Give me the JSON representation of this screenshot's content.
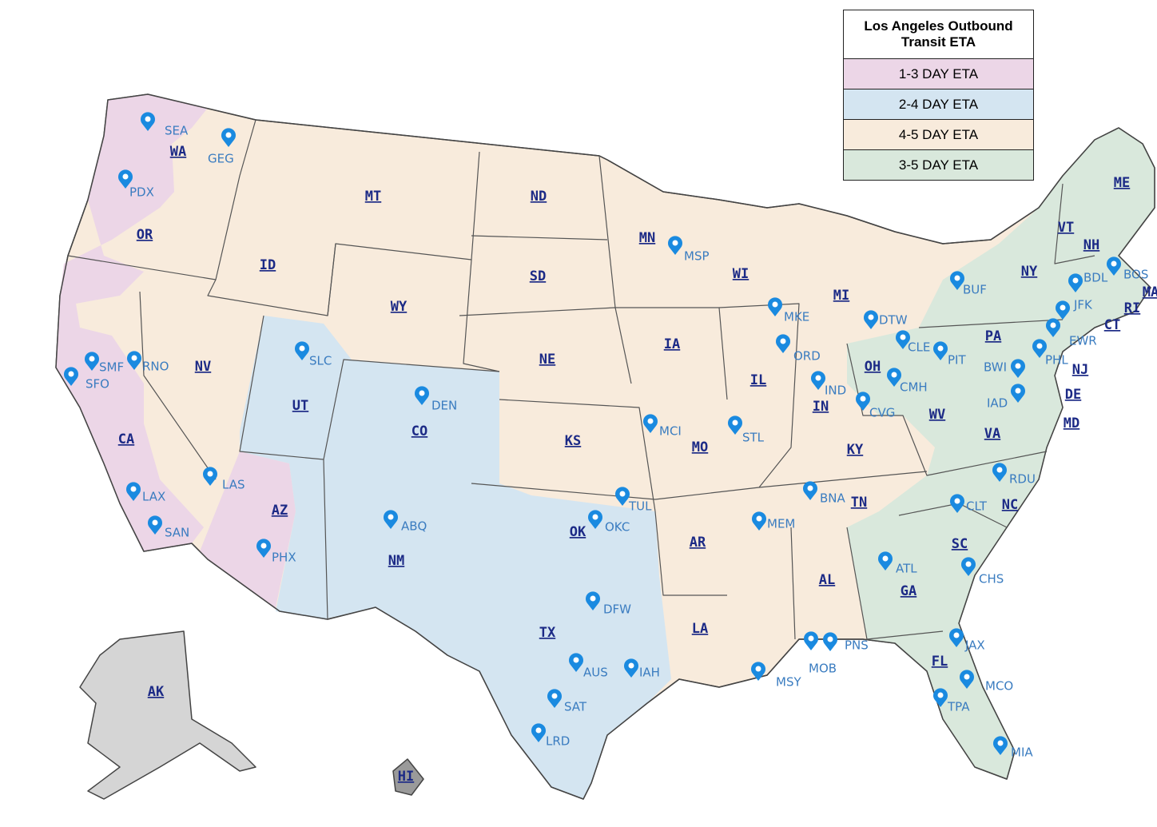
{
  "legend": {
    "title": "Los Angeles Outbound Transit ETA",
    "entries": [
      {
        "label": "1-3 DAY ETA",
        "color": "#ecd6e7"
      },
      {
        "label": "2-4 DAY ETA",
        "color": "#d4e5f1"
      },
      {
        "label": "4-5 DAY ETA",
        "color": "#f8ebdc"
      },
      {
        "label": "3-5 DAY ETA",
        "color": "#d9e8dc"
      }
    ]
  },
  "states": [
    "WA",
    "OR",
    "CA",
    "NV",
    "ID",
    "MT",
    "WY",
    "UT",
    "CO",
    "AZ",
    "NM",
    "ND",
    "SD",
    "NE",
    "KS",
    "OK",
    "TX",
    "MN",
    "IA",
    "MO",
    "AR",
    "LA",
    "WI",
    "IL",
    "MI",
    "IN",
    "OH",
    "KY",
    "TN",
    "AL",
    "GA",
    "FL",
    "SC",
    "NC",
    "VA",
    "WV",
    "PA",
    "NY",
    "VT",
    "NH",
    "ME",
    "MA",
    "RI",
    "CT",
    "NJ",
    "DE",
    "MD",
    "AK",
    "HI"
  ],
  "airports": [
    "SEA",
    "GEG",
    "PDX",
    "SMF",
    "RNO",
    "SFO",
    "LAX",
    "SAN",
    "LAS",
    "PHX",
    "SLC",
    "DEN",
    "ABQ",
    "TUL",
    "OKC",
    "DFW",
    "AUS",
    "IAH",
    "SAT",
    "LRD",
    "MCI",
    "STL",
    "MSP",
    "MKE",
    "ORD",
    "IND",
    "MEM",
    "BNA",
    "MSY",
    "MOB",
    "PNS",
    "DTW",
    "CLE",
    "CMH",
    "CVG",
    "PIT",
    "BUF",
    "BOS",
    "BDL",
    "JFK",
    "EWR",
    "PHL",
    "BWI",
    "IAD",
    "RDU",
    "CLT",
    "CHS",
    "ATL",
    "JAX",
    "MCO",
    "TPA",
    "MIA"
  ]
}
